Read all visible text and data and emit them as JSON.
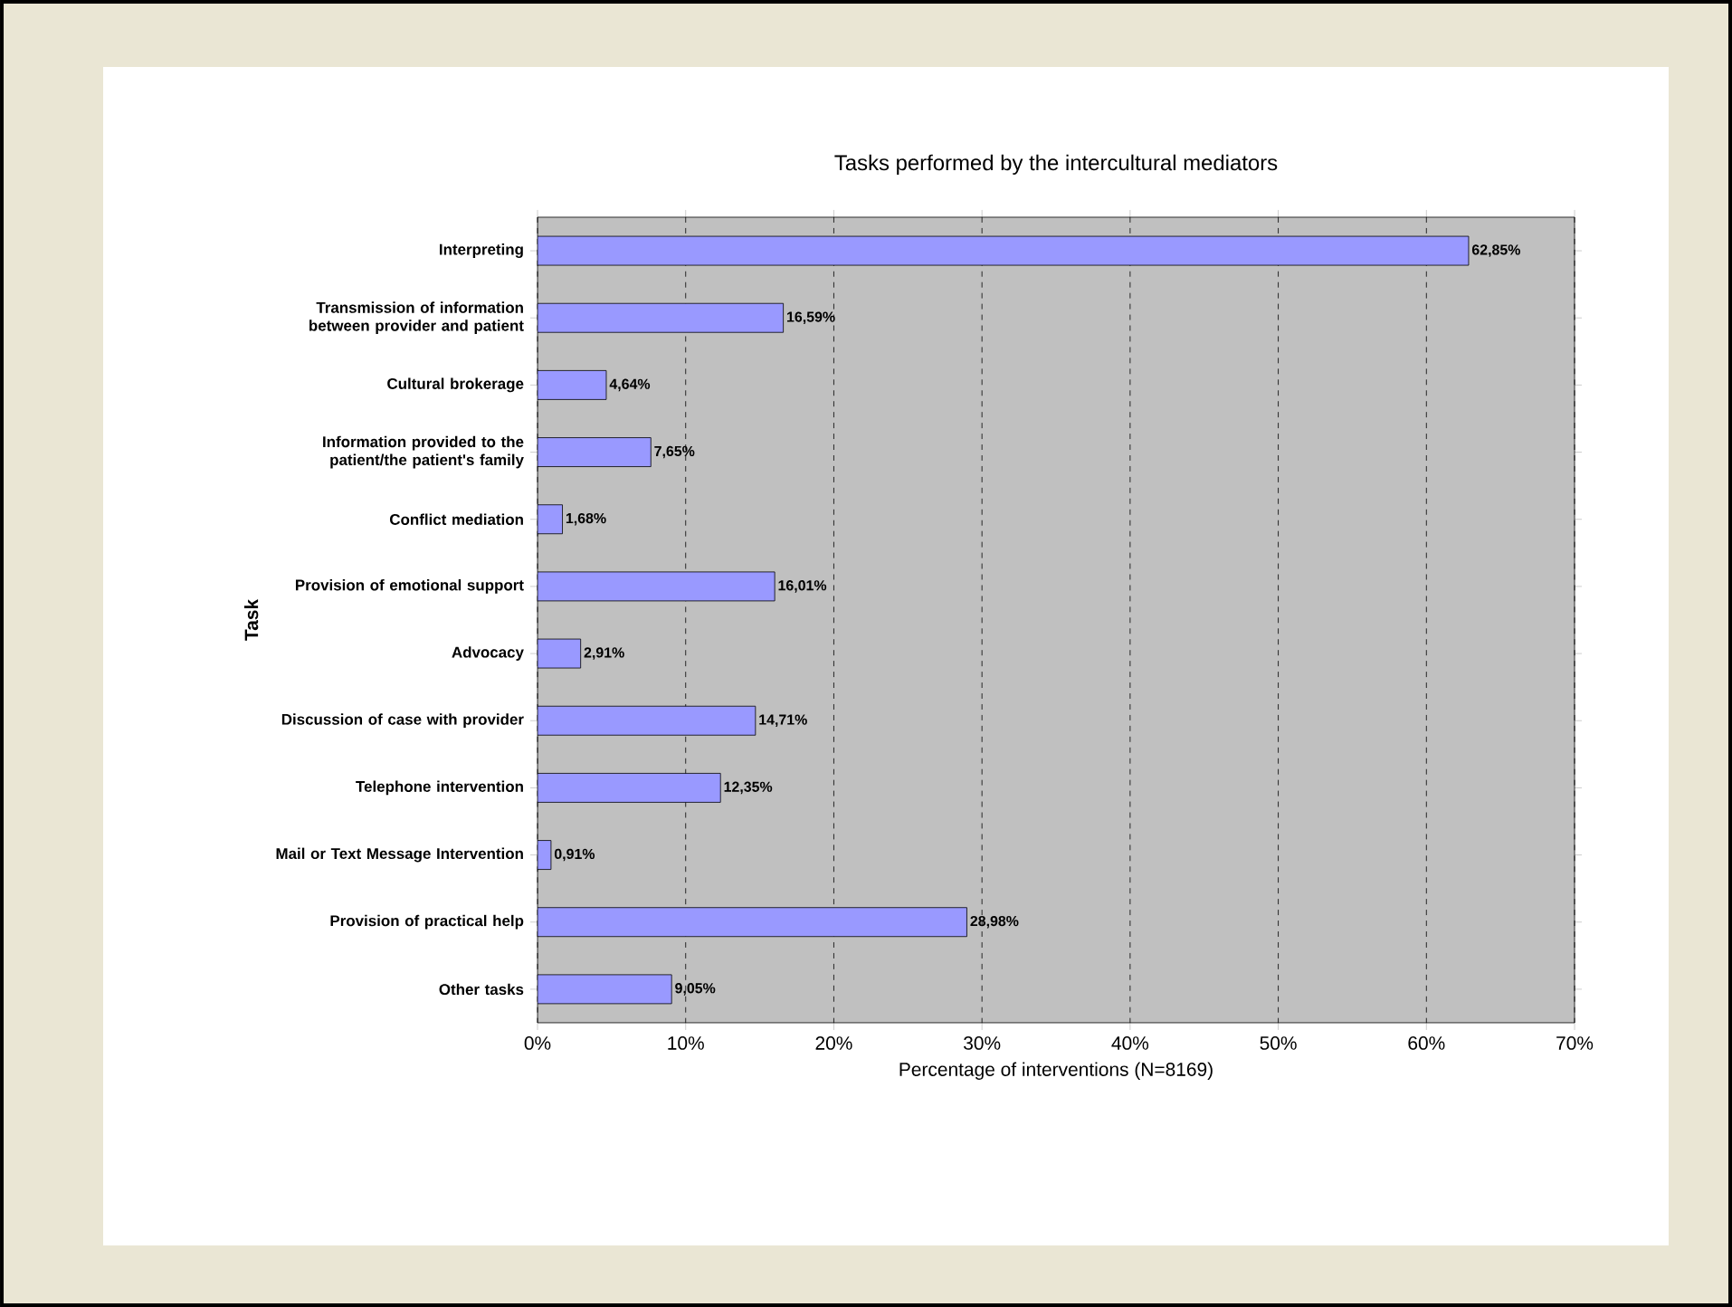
{
  "chart_data": {
    "type": "bar",
    "orientation": "horizontal",
    "title": "Tasks performed by the intercultural mediators",
    "xlabel": "Percentage of interventions (N=8169)",
    "ylabel": "Task",
    "categories": [
      "Interpreting",
      "Transmission of information between provider and patient",
      "Cultural brokerage",
      "Information provided to the patient/the patient's family",
      "Conflict mediation",
      "Provision of emotional support",
      "Advocacy",
      "Discussion of case with provider",
      "Telephone intervention",
      "Mail or Text Message Intervention",
      "Provision of practical help",
      "Other tasks"
    ],
    "values": [
      62.85,
      16.59,
      4.64,
      7.65,
      1.68,
      16.01,
      2.91,
      14.71,
      12.35,
      0.91,
      28.98,
      9.05
    ],
    "value_labels": [
      "62,85%",
      "16,59%",
      "4,64%",
      "7,65%",
      "1,68%",
      "16,01%",
      "2,91%",
      "14,71%",
      "12,35%",
      "0,91%",
      "28,98%",
      "9,05%"
    ],
    "color": "#9999ff",
    "xlim": [
      0,
      70
    ],
    "xticks": [
      {
        "value": 0,
        "label": "0%"
      },
      {
        "value": 10,
        "label": "10%"
      },
      {
        "value": 20,
        "label": "20%"
      },
      {
        "value": 30,
        "label": "30%"
      },
      {
        "value": 40,
        "label": "40%"
      },
      {
        "value": 50,
        "label": "50%"
      },
      {
        "value": 60,
        "label": "60%"
      },
      {
        "value": 70,
        "label": "70%"
      }
    ],
    "grid": "x"
  }
}
